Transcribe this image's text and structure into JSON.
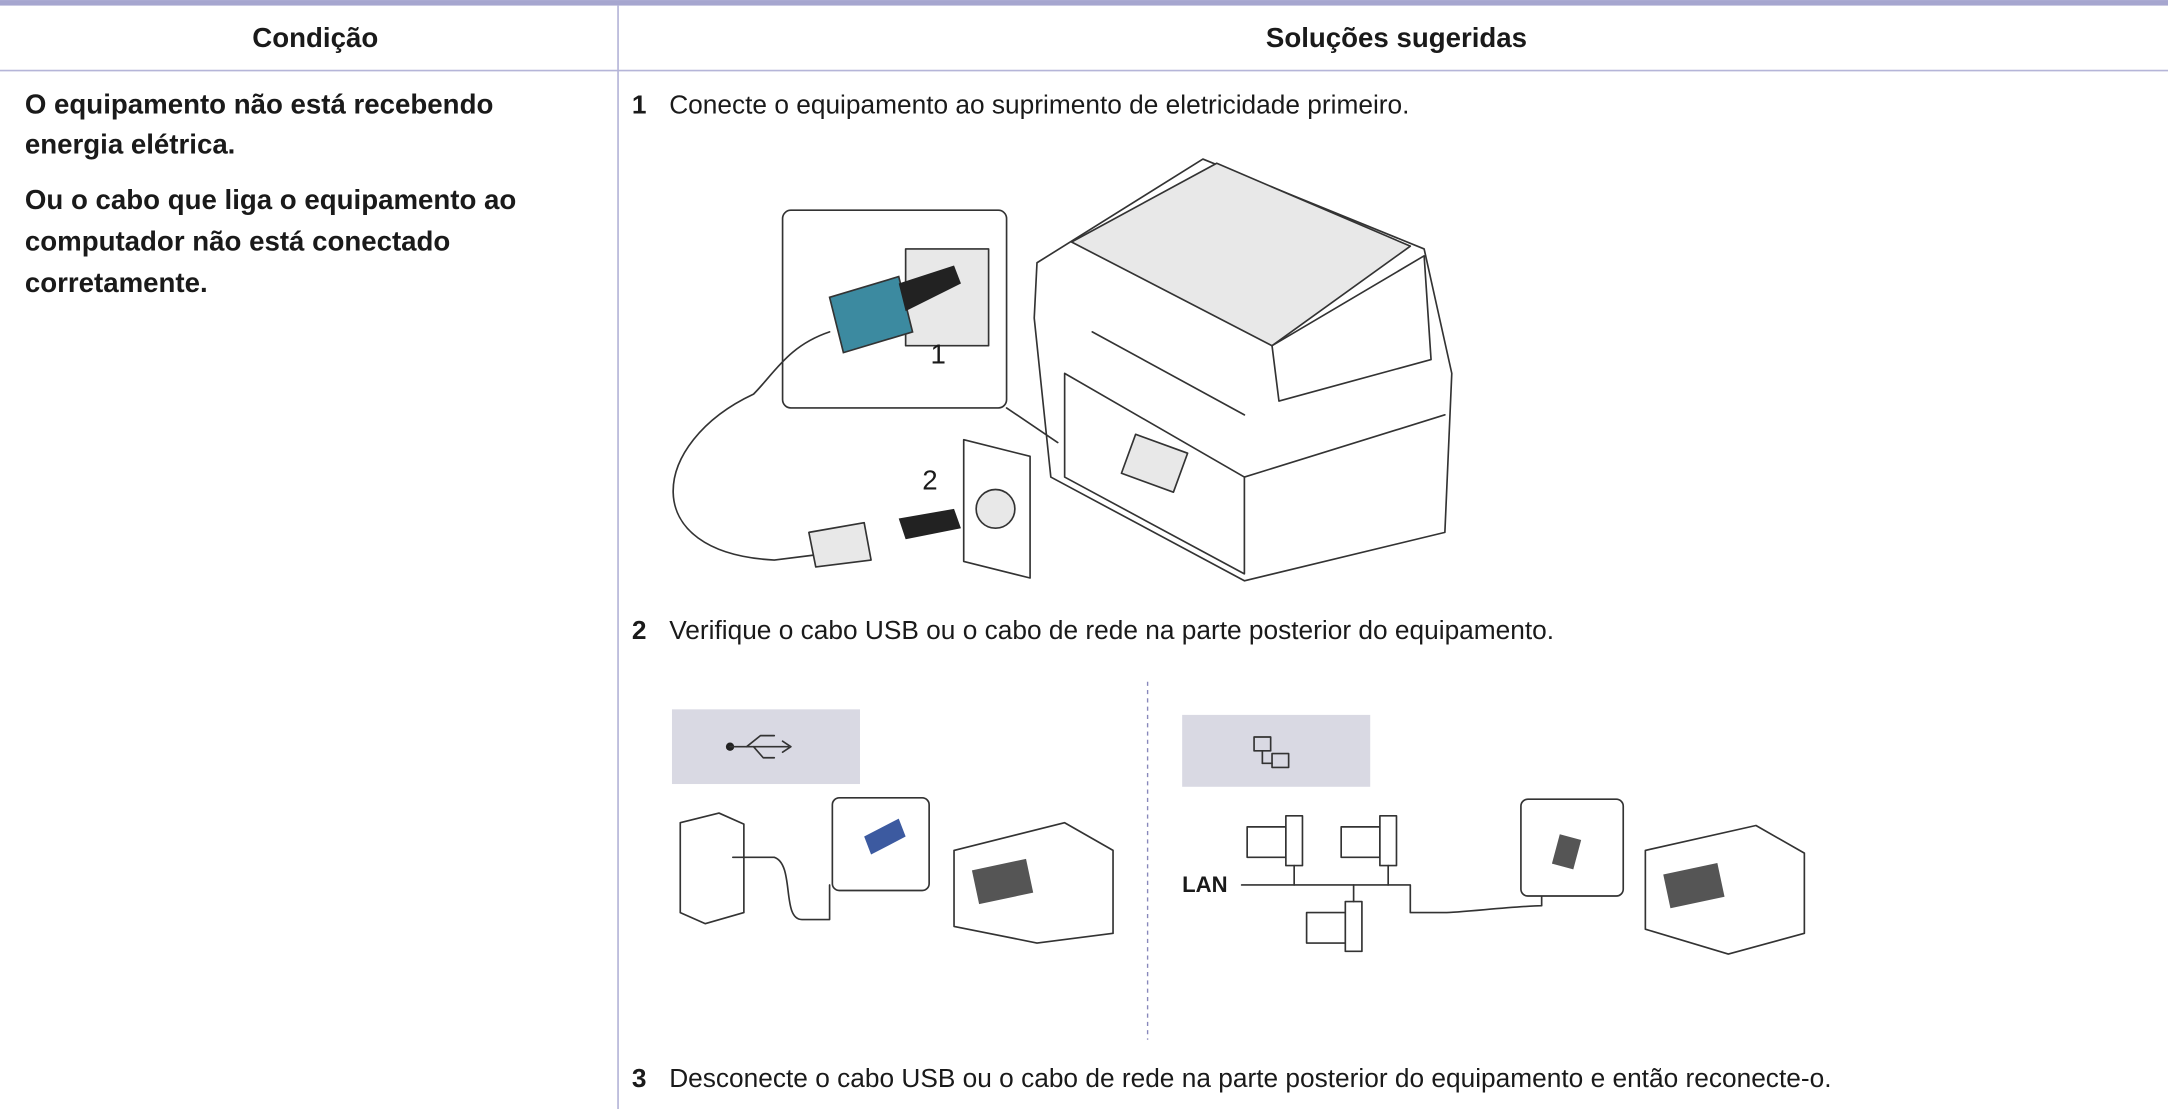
{
  "table": {
    "headers": [
      "Condição",
      "Soluções sugeridas"
    ],
    "condition": [
      "O equipamento não está recebendo energia elétrica.",
      "Ou o cabo que liga o equipamento ao computador não está conectado corretamente."
    ],
    "steps": [
      {
        "number": "1",
        "text": "Conecte o equipamento ao suprimento de eletricidade primeiro."
      },
      {
        "number": "2",
        "text": "Verifique o cabo USB ou o cabo de rede na parte posterior do equipamento."
      },
      {
        "number": "3",
        "text": "Desconecte o cabo USB ou o cabo de rede na parte posterior do equipamento e então reconecte-o."
      }
    ]
  },
  "figures": {
    "power_callouts": [
      "1",
      "2"
    ],
    "network_label": "LAN"
  }
}
